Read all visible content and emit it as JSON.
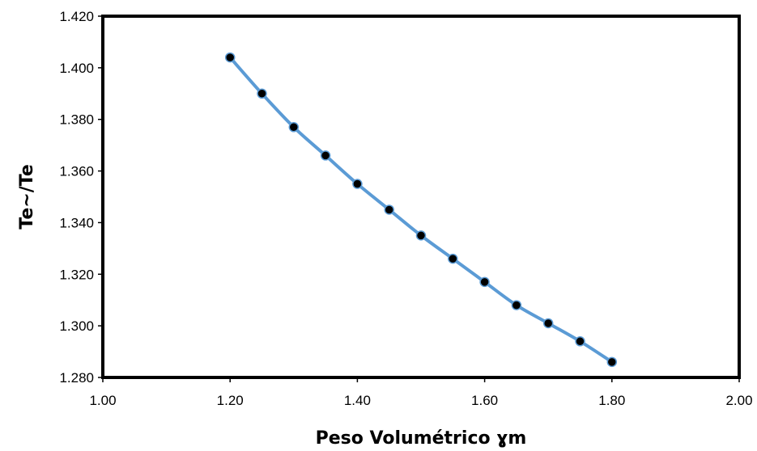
{
  "chart_data": {
    "type": "line",
    "title": "",
    "xlabel": "Peso Volumétrico ɣm",
    "ylabel": "Te~/Te",
    "xlim": [
      1.0,
      2.0
    ],
    "ylim": [
      1.28,
      1.42
    ],
    "x_ticks": [
      "1.00",
      "1.20",
      "1.40",
      "1.60",
      "1.80",
      "2.00"
    ],
    "y_ticks": [
      "1.280",
      "1.300",
      "1.320",
      "1.340",
      "1.360",
      "1.380",
      "1.400",
      "1.420"
    ],
    "grid": false,
    "legend": "none",
    "series": [
      {
        "x": [
          1.2,
          1.25,
          1.3,
          1.35,
          1.4,
          1.45,
          1.5,
          1.55,
          1.6,
          1.65,
          1.7,
          1.75,
          1.8
        ],
        "y": [
          1.404,
          1.39,
          1.377,
          1.366,
          1.355,
          1.345,
          1.335,
          1.326,
          1.317,
          1.308,
          1.301,
          1.294,
          1.286
        ],
        "line_color": "#5B9BD5",
        "marker_color": "#000000"
      }
    ]
  }
}
